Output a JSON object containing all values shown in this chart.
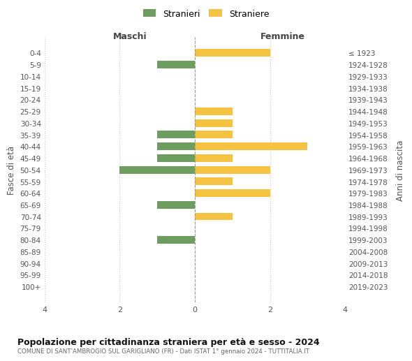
{
  "age_groups": [
    "0-4",
    "5-9",
    "10-14",
    "15-19",
    "20-24",
    "25-29",
    "30-34",
    "35-39",
    "40-44",
    "45-49",
    "50-54",
    "55-59",
    "60-64",
    "65-69",
    "70-74",
    "75-79",
    "80-84",
    "85-89",
    "90-94",
    "95-99",
    "100+"
  ],
  "birth_years": [
    "2019-2023",
    "2014-2018",
    "2009-2013",
    "2004-2008",
    "1999-2003",
    "1994-1998",
    "1989-1993",
    "1984-1988",
    "1979-1983",
    "1974-1978",
    "1969-1973",
    "1964-1968",
    "1959-1963",
    "1954-1958",
    "1949-1953",
    "1944-1948",
    "1939-1943",
    "1934-1938",
    "1929-1933",
    "1924-1928",
    "≤ 1923"
  ],
  "maschi_stranieri": [
    0,
    1,
    0,
    0,
    0,
    0,
    0,
    1,
    1,
    1,
    2,
    0,
    0,
    1,
    0,
    0,
    1,
    0,
    0,
    0,
    0
  ],
  "femmine_straniere": [
    2,
    0,
    0,
    0,
    0,
    1,
    1,
    1,
    3,
    1,
    2,
    1,
    2,
    0,
    1,
    0,
    0,
    0,
    0,
    0,
    0
  ],
  "color_maschi": "#6e9e5f",
  "color_femmine": "#f5c242",
  "xlim": 4,
  "title": "Popolazione per cittadinanza straniera per età e sesso - 2024",
  "subtitle": "COMUNE DI SANT'AMBROGIO SUL GARIGLIANO (FR) - Dati ISTAT 1° gennaio 2024 - TUTTITALIA.IT",
  "ylabel_left": "Fasce di età",
  "ylabel_right": "Anni di nascita",
  "legend_maschi": "Stranieri",
  "legend_femmine": "Straniere",
  "header_maschi": "Maschi",
  "header_femmine": "Femmine",
  "background_color": "#ffffff",
  "grid_color": "#cccccc",
  "bar_height": 0.65
}
